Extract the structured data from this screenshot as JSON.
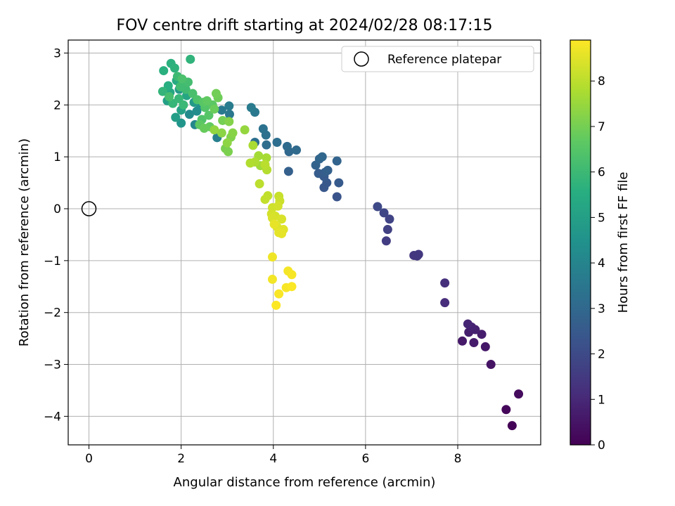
{
  "chart_data": {
    "type": "scatter",
    "title": "FOV centre drift starting at 2024/02/28 08:17:15",
    "xlabel": "Angular distance from reference (arcmin)",
    "ylabel": "Rotation from reference (arcmin)",
    "xlim": [
      -0.45,
      9.8
    ],
    "ylim": [
      -4.55,
      3.25
    ],
    "xticks": [
      0,
      2,
      4,
      6,
      8
    ],
    "yticks": [
      -4,
      -3,
      -2,
      -1,
      0,
      1,
      2,
      3
    ],
    "grid": true,
    "legend": {
      "position": "top-right",
      "entries": [
        "Reference platepar"
      ]
    },
    "reference_point": {
      "x": 0,
      "y": 0
    },
    "colorbar": {
      "label": "Hours from first FF file",
      "colormap": "viridis",
      "range": [
        0,
        8.9
      ],
      "ticks": [
        0,
        1,
        2,
        3,
        4,
        5,
        6,
        7,
        8
      ]
    },
    "points": [
      {
        "x": 9.18,
        "y": -4.18,
        "h": 0.05
      },
      {
        "x": 9.05,
        "y": -3.87,
        "h": 0.15
      },
      {
        "x": 9.32,
        "y": -3.57,
        "h": 0.25
      },
      {
        "x": 8.72,
        "y": -3.0,
        "h": 0.45
      },
      {
        "x": 8.6,
        "y": -2.66,
        "h": 0.55
      },
      {
        "x": 8.1,
        "y": -2.55,
        "h": 0.6
      },
      {
        "x": 8.35,
        "y": -2.58,
        "h": 0.65
      },
      {
        "x": 8.52,
        "y": -2.42,
        "h": 0.7
      },
      {
        "x": 8.24,
        "y": -2.38,
        "h": 0.75
      },
      {
        "x": 8.38,
        "y": -2.33,
        "h": 0.8
      },
      {
        "x": 8.3,
        "y": -2.28,
        "h": 0.85
      },
      {
        "x": 8.22,
        "y": -2.22,
        "h": 0.9
      },
      {
        "x": 7.72,
        "y": -1.81,
        "h": 1.1
      },
      {
        "x": 7.72,
        "y": -1.43,
        "h": 1.2
      },
      {
        "x": 7.12,
        "y": -0.91,
        "h": 1.35
      },
      {
        "x": 7.05,
        "y": -0.9,
        "h": 1.4
      },
      {
        "x": 7.15,
        "y": -0.88,
        "h": 1.45
      },
      {
        "x": 6.45,
        "y": -0.62,
        "h": 1.6
      },
      {
        "x": 6.48,
        "y": -0.4,
        "h": 1.7
      },
      {
        "x": 6.52,
        "y": -0.2,
        "h": 1.8
      },
      {
        "x": 6.4,
        "y": -0.08,
        "h": 1.85
      },
      {
        "x": 6.26,
        "y": 0.04,
        "h": 1.95
      },
      {
        "x": 5.38,
        "y": 0.23,
        "h": 2.3
      },
      {
        "x": 5.1,
        "y": 0.41,
        "h": 2.4
      },
      {
        "x": 5.16,
        "y": 0.5,
        "h": 2.45
      },
      {
        "x": 5.42,
        "y": 0.5,
        "h": 2.5
      },
      {
        "x": 5.1,
        "y": 0.62,
        "h": 2.55
      },
      {
        "x": 4.98,
        "y": 0.68,
        "h": 2.6
      },
      {
        "x": 5.12,
        "y": 0.7,
        "h": 2.65
      },
      {
        "x": 4.33,
        "y": 0.72,
        "h": 2.7
      },
      {
        "x": 5.18,
        "y": 0.74,
        "h": 2.75
      },
      {
        "x": 4.92,
        "y": 0.84,
        "h": 2.8
      },
      {
        "x": 5.38,
        "y": 0.92,
        "h": 2.85
      },
      {
        "x": 5.0,
        "y": 0.96,
        "h": 2.9
      },
      {
        "x": 5.06,
        "y": 1.0,
        "h": 2.95
      },
      {
        "x": 4.34,
        "y": 1.1,
        "h": 3.0
      },
      {
        "x": 4.5,
        "y": 1.13,
        "h": 3.05
      },
      {
        "x": 4.3,
        "y": 1.2,
        "h": 3.1
      },
      {
        "x": 3.85,
        "y": 1.23,
        "h": 3.15
      },
      {
        "x": 4.08,
        "y": 1.28,
        "h": 3.2
      },
      {
        "x": 3.6,
        "y": 1.28,
        "h": 3.25
      },
      {
        "x": 3.84,
        "y": 1.42,
        "h": 3.3
      },
      {
        "x": 3.78,
        "y": 1.54,
        "h": 3.35
      },
      {
        "x": 3.05,
        "y": 1.82,
        "h": 3.5
      },
      {
        "x": 3.6,
        "y": 1.86,
        "h": 3.55
      },
      {
        "x": 2.88,
        "y": 1.9,
        "h": 3.6
      },
      {
        "x": 3.52,
        "y": 1.95,
        "h": 3.65
      },
      {
        "x": 3.04,
        "y": 1.98,
        "h": 3.7
      },
      {
        "x": 2.78,
        "y": 1.37,
        "h": 3.8
      },
      {
        "x": 2.3,
        "y": 1.62,
        "h": 4.1
      },
      {
        "x": 2.18,
        "y": 1.82,
        "h": 4.2
      },
      {
        "x": 2.34,
        "y": 1.88,
        "h": 4.3
      },
      {
        "x": 2.42,
        "y": 1.98,
        "h": 4.4
      },
      {
        "x": 2.0,
        "y": 1.65,
        "h": 4.6
      },
      {
        "x": 1.96,
        "y": 2.3,
        "h": 4.7
      },
      {
        "x": 2.28,
        "y": 2.05,
        "h": 4.8
      },
      {
        "x": 1.88,
        "y": 1.76,
        "h": 4.9
      },
      {
        "x": 1.7,
        "y": 2.08,
        "h": 5.0
      },
      {
        "x": 2.0,
        "y": 1.9,
        "h": 5.1
      },
      {
        "x": 2.12,
        "y": 2.18,
        "h": 5.2
      },
      {
        "x": 1.76,
        "y": 2.24,
        "h": 5.3
      },
      {
        "x": 1.9,
        "y": 2.47,
        "h": 5.4
      },
      {
        "x": 2.07,
        "y": 2.42,
        "h": 5.5
      },
      {
        "x": 1.72,
        "y": 2.37,
        "h": 5.55
      },
      {
        "x": 1.62,
        "y": 2.66,
        "h": 5.6
      },
      {
        "x": 1.78,
        "y": 2.8,
        "h": 5.65
      },
      {
        "x": 1.86,
        "y": 2.71,
        "h": 5.7
      },
      {
        "x": 2.2,
        "y": 2.88,
        "h": 5.75
      },
      {
        "x": 1.6,
        "y": 2.26,
        "h": 5.8
      },
      {
        "x": 1.82,
        "y": 2.03,
        "h": 5.85
      },
      {
        "x": 1.95,
        "y": 2.12,
        "h": 5.9
      },
      {
        "x": 2.05,
        "y": 2.0,
        "h": 5.95
      },
      {
        "x": 1.92,
        "y": 2.55,
        "h": 6.0
      },
      {
        "x": 2.1,
        "y": 2.3,
        "h": 6.05
      },
      {
        "x": 1.98,
        "y": 2.35,
        "h": 6.1
      },
      {
        "x": 2.15,
        "y": 2.44,
        "h": 6.15
      },
      {
        "x": 1.74,
        "y": 2.16,
        "h": 6.2
      },
      {
        "x": 2.25,
        "y": 2.22,
        "h": 6.25
      },
      {
        "x": 2.02,
        "y": 2.5,
        "h": 6.3
      },
      {
        "x": 2.35,
        "y": 2.1,
        "h": 6.35
      },
      {
        "x": 2.45,
        "y": 1.72,
        "h": 6.4
      },
      {
        "x": 2.52,
        "y": 1.95,
        "h": 6.45
      },
      {
        "x": 2.6,
        "y": 1.8,
        "h": 6.5
      },
      {
        "x": 2.48,
        "y": 2.05,
        "h": 6.55
      },
      {
        "x": 2.68,
        "y": 2.0,
        "h": 6.6
      },
      {
        "x": 2.4,
        "y": 1.62,
        "h": 6.65
      },
      {
        "x": 2.56,
        "y": 2.08,
        "h": 6.7
      },
      {
        "x": 2.62,
        "y": 1.58,
        "h": 6.75
      },
      {
        "x": 2.5,
        "y": 1.55,
        "h": 6.8
      },
      {
        "x": 2.72,
        "y": 1.92,
        "h": 6.85
      },
      {
        "x": 2.8,
        "y": 2.14,
        "h": 6.9
      },
      {
        "x": 2.76,
        "y": 2.22,
        "h": 6.95
      },
      {
        "x": 2.9,
        "y": 1.7,
        "h": 7.0
      },
      {
        "x": 2.96,
        "y": 1.16,
        "h": 7.05
      },
      {
        "x": 3.02,
        "y": 1.1,
        "h": 7.1
      },
      {
        "x": 3.08,
        "y": 1.38,
        "h": 7.15
      },
      {
        "x": 3.04,
        "y": 1.68,
        "h": 7.2
      },
      {
        "x": 3.12,
        "y": 1.46,
        "h": 7.25
      },
      {
        "x": 2.88,
        "y": 1.46,
        "h": 7.3
      },
      {
        "x": 3.0,
        "y": 1.27,
        "h": 7.35
      },
      {
        "x": 2.72,
        "y": 1.52,
        "h": 7.4
      },
      {
        "x": 3.38,
        "y": 1.52,
        "h": 7.45
      },
      {
        "x": 3.72,
        "y": 0.83,
        "h": 7.6
      },
      {
        "x": 3.68,
        "y": 1.02,
        "h": 7.65
      },
      {
        "x": 3.85,
        "y": 0.98,
        "h": 7.7
      },
      {
        "x": 3.56,
        "y": 1.22,
        "h": 7.75
      },
      {
        "x": 3.6,
        "y": 0.9,
        "h": 7.8
      },
      {
        "x": 3.5,
        "y": 0.88,
        "h": 7.85
      },
      {
        "x": 3.86,
        "y": 0.75,
        "h": 7.9
      },
      {
        "x": 3.82,
        "y": 0.85,
        "h": 7.95
      },
      {
        "x": 3.7,
        "y": 0.48,
        "h": 8.0
      },
      {
        "x": 3.88,
        "y": 0.25,
        "h": 8.05
      },
      {
        "x": 3.82,
        "y": 0.18,
        "h": 8.1
      },
      {
        "x": 4.12,
        "y": 0.24,
        "h": 8.15
      },
      {
        "x": 4.14,
        "y": 0.15,
        "h": 8.2
      },
      {
        "x": 3.98,
        "y": 0.02,
        "h": 8.25
      },
      {
        "x": 4.1,
        "y": 0.05,
        "h": 8.3
      },
      {
        "x": 3.96,
        "y": -0.1,
        "h": 8.32
      },
      {
        "x": 4.04,
        "y": -0.14,
        "h": 8.35
      },
      {
        "x": 4.18,
        "y": -0.2,
        "h": 8.38
      },
      {
        "x": 3.98,
        "y": -0.18,
        "h": 8.4
      },
      {
        "x": 4.08,
        "y": -0.35,
        "h": 8.45
      },
      {
        "x": 4.22,
        "y": -0.4,
        "h": 8.5
      },
      {
        "x": 4.12,
        "y": -0.46,
        "h": 8.55
      },
      {
        "x": 4.18,
        "y": -0.48,
        "h": 8.58
      },
      {
        "x": 4.02,
        "y": -0.3,
        "h": 8.6
      },
      {
        "x": 3.98,
        "y": -0.93,
        "h": 8.7
      },
      {
        "x": 3.98,
        "y": -1.36,
        "h": 8.75
      },
      {
        "x": 4.32,
        "y": -1.2,
        "h": 8.78
      },
      {
        "x": 4.4,
        "y": -1.27,
        "h": 8.8
      },
      {
        "x": 4.28,
        "y": -1.52,
        "h": 8.82
      },
      {
        "x": 4.12,
        "y": -1.64,
        "h": 8.84
      },
      {
        "x": 4.4,
        "y": -1.5,
        "h": 8.86
      },
      {
        "x": 4.06,
        "y": -1.86,
        "h": 8.88
      }
    ]
  }
}
